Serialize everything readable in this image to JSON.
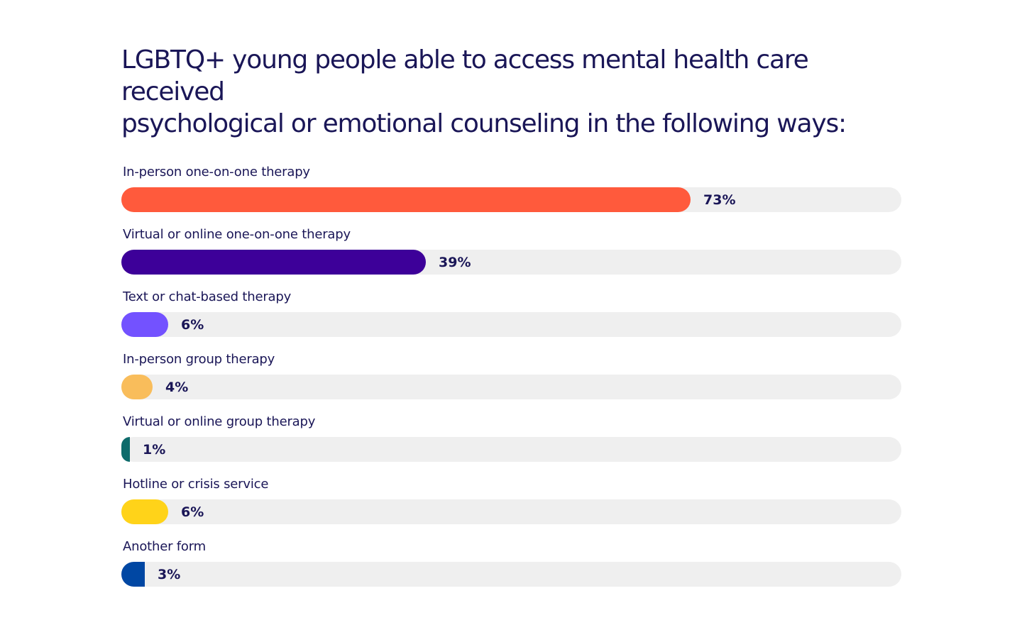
{
  "chart_data": {
    "type": "bar",
    "orientation": "horizontal",
    "title": "LGBTQ+ young people able to access mental health care received\npsychological or emotional counseling in the following ways:",
    "xlim": [
      0,
      100
    ],
    "grid": false,
    "legend": "none",
    "track_color": "#efefef",
    "bars": [
      {
        "label": "In-person one-on-one therapy",
        "value": 73,
        "display": "73%",
        "color": "#ff5a3c"
      },
      {
        "label": "Virtual or online one-on-one therapy",
        "value": 39,
        "display": "39%",
        "color": "#3d0099"
      },
      {
        "label": "Text or chat-based therapy",
        "value": 6,
        "display": "6%",
        "color": "#7352ff"
      },
      {
        "label": "In-person group therapy",
        "value": 4,
        "display": "4%",
        "color": "#f9bd5b"
      },
      {
        "label": "Virtual or online group therapy",
        "value": 1,
        "display": "1%",
        "color": "#0e6b6b"
      },
      {
        "label": "Hotline or crisis service",
        "value": 6,
        "display": "6%",
        "color": "#ffd319"
      },
      {
        "label": "Another form",
        "value": 3,
        "display": "3%",
        "color": "#0047a3"
      }
    ]
  }
}
